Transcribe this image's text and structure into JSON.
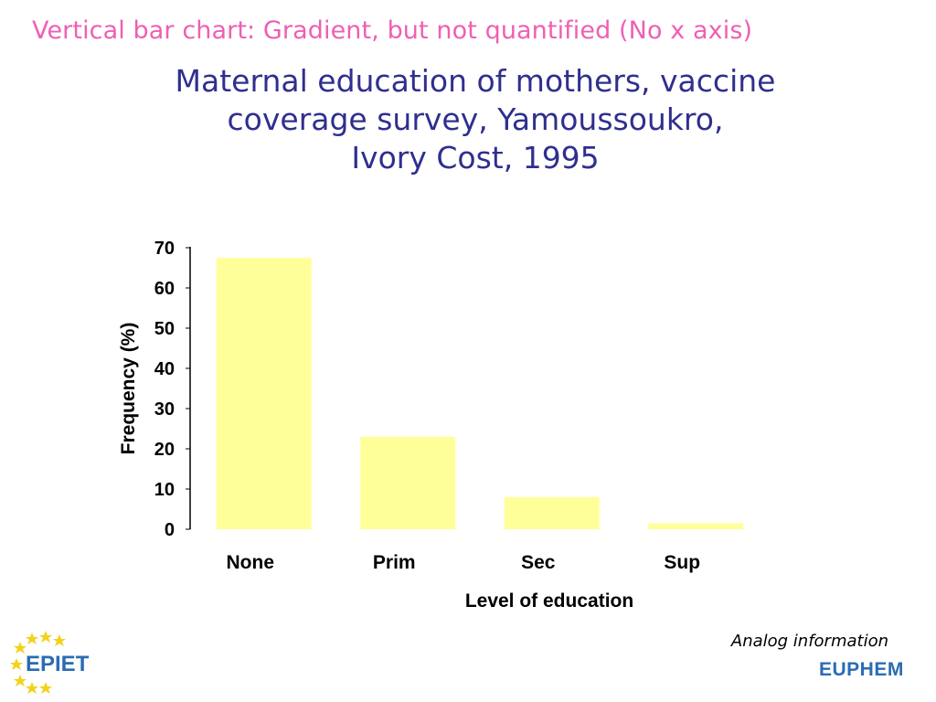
{
  "header": {
    "title": "Vertical bar chart: Gradient, but not quantified (No x axis)"
  },
  "chart_data": {
    "type": "bar",
    "title_lines": [
      "Maternal education of mothers, vaccine",
      "coverage survey, Yamoussoukro,",
      "Ivory Cost, 1995"
    ],
    "categories": [
      "None",
      "Prim",
      "Sec",
      "Sup"
    ],
    "values": [
      67.5,
      23,
      8,
      1.5
    ],
    "xlabel": "Level of education",
    "ylabel": "Frequency (%)",
    "ylim": [
      0,
      70
    ],
    "yticks": [
      0,
      10,
      20,
      30,
      40,
      50,
      60,
      70
    ],
    "x_axis_line": false,
    "grid": false,
    "legend": "none",
    "bar_color": "#ffff99"
  },
  "footer": {
    "note": "Analog information",
    "logo_left": "EPIET",
    "logo_right": "EUPHEM"
  },
  "colors": {
    "header_text": "#ee5fb4",
    "title_text": "#2f2f8f",
    "logo_blue": "#2a6cb3",
    "star_yellow": "#f2d21b"
  }
}
